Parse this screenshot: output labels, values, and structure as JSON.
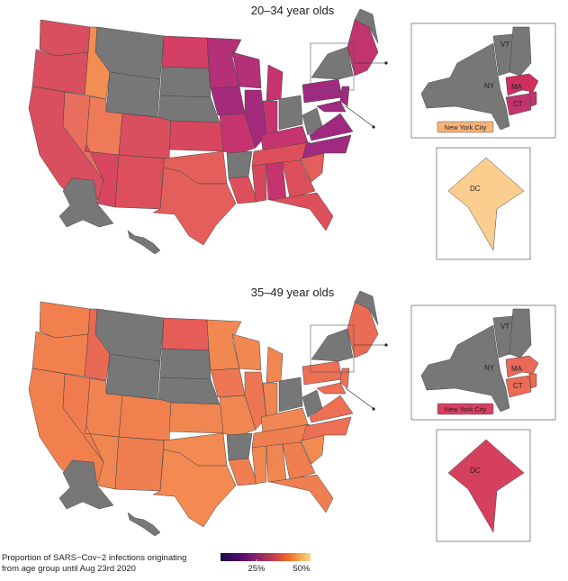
{
  "panels": [
    {
      "title": "20–34 year olds",
      "inset_labels": {
        "vt": "VT",
        "ny": "NY",
        "ma": "MA",
        "ct": "CT",
        "nyc": "New York City",
        "dc": "DC"
      },
      "colors": {
        "west": "#d94f5f",
        "mountain": "#e96e5e",
        "idaho": "#f28e52",
        "utah": "#ee7a58",
        "plains": "#d8465f",
        "north_plains": "#d43f65",
        "midwest_upper": "#b43077",
        "midwest": "#c6346f",
        "great_lakes_dark": "#a42a7c",
        "south": "#e45f5b",
        "southeast": "#dd505b",
        "east": "#9f2a80",
        "new_england": "#c2346e",
        "ma_inset": "#cf2f5f",
        "nyc_badge": "#f6b47a",
        "dc": "#fbcd8e",
        "gray": "#777777"
      }
    },
    {
      "title": "35–49 year olds",
      "inset_labels": {
        "vt": "VT",
        "ny": "NY",
        "ma": "MA",
        "ct": "CT",
        "nyc": "New York City",
        "dc": "DC"
      },
      "colors": {
        "west": "#f2804f",
        "mountain": "#f07b4f",
        "idaho": "#e86a55",
        "utah": "#f18351",
        "plains": "#f08651",
        "north_plains": "#e65c58",
        "midwest_upper": "#f28851",
        "midwest": "#f08752",
        "great_lakes_dark": "#ec7653",
        "south": "#f28a51",
        "southeast": "#ef7f51",
        "east": "#ed6f55",
        "new_england": "#eb6c55",
        "ma_inset": "#e9695a",
        "nyc_badge": "#d8405f",
        "dc": "#d4405e",
        "gray": "#777777"
      }
    }
  ],
  "legend": {
    "line1": "Proportion of SARS−Cov−2 infections originating",
    "line2": "from age group until Aug 23rd 2020",
    "ticks": [
      "25%",
      "50%"
    ],
    "tick_values": [
      0.25,
      0.5
    ],
    "range": [
      0.05,
      0.55
    ],
    "gradient": [
      "#1b0c41",
      "#4a0c6b",
      "#8a226a",
      "#c73e4c",
      "#ed6925",
      "#f8a24a",
      "#fcd38f"
    ]
  }
}
